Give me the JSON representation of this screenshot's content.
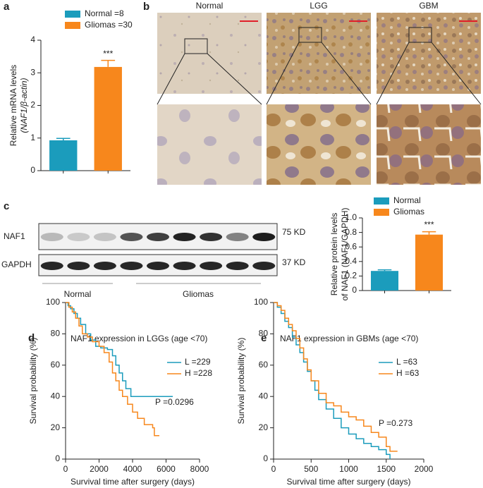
{
  "chart_data": [
    {
      "type": "bar",
      "panel": "a",
      "ylabel": [
        "Relative mRNA levels",
        "(NAF1/β-actin)"
      ],
      "ylim": [
        0,
        4
      ],
      "yticks": [
        0,
        1,
        2,
        3,
        4
      ],
      "series": [
        {
          "name": "Normal =8",
          "color": "#1b9cbc",
          "values": [
            0.93
          ],
          "errors": [
            0.06
          ]
        },
        {
          "name": "Gliomas =30",
          "color": "#f7871c",
          "values": [
            3.18
          ],
          "errors": [
            0.2
          ],
          "annotation": "***"
        }
      ]
    },
    {
      "type": "bar",
      "panel": "c",
      "ylabel": [
        "Relative protein levels",
        "of NAF1 (NAF1/GAPDH)"
      ],
      "ylim": [
        0,
        1
      ],
      "yticks": [
        0,
        0.2,
        0.4,
        0.6,
        0.8,
        {
          "value": 1,
          "label": "1.0"
        }
      ],
      "series": [
        {
          "name": "Normal",
          "color": "#1b9cbc",
          "values": [
            0.27
          ],
          "errors": [
            0.015
          ]
        },
        {
          "name": "Gliomas",
          "color": "#f7871c",
          "values": [
            0.77
          ],
          "errors": [
            0.04
          ],
          "annotation": "***"
        }
      ]
    },
    {
      "type": "step",
      "panel": "d",
      "title": "NAF1 expression in LGGs (age <70)",
      "xlabel": "Survival time after surgery (days)",
      "ylabel": "Survival probability (%)",
      "xlim": [
        0,
        8000
      ],
      "xticks": [
        0,
        2000,
        4000,
        6000,
        8000
      ],
      "ylim": [
        0,
        100
      ],
      "yticks": [
        0,
        20,
        40,
        60,
        80,
        100
      ],
      "annotation": "P =0.0296",
      "series": [
        {
          "name": "L =229",
          "color": "#1b9cbc",
          "x": [
            0,
            150,
            300,
            500,
            700,
            900,
            1200,
            1500,
            1800,
            2100,
            2500,
            2800,
            3000,
            3200,
            3400,
            3600,
            3900,
            6400
          ],
          "values": [
            100,
            98,
            96,
            93,
            90,
            86,
            80,
            76,
            72,
            71,
            70,
            66,
            60,
            55,
            50,
            45,
            40,
            40
          ]
        },
        {
          "name": "H =228",
          "color": "#f7871c",
          "x": [
            0,
            200,
            400,
            600,
            800,
            1000,
            1300,
            1600,
            2000,
            2300,
            2600,
            2800,
            3000,
            3200,
            3400,
            3700,
            4000,
            4300,
            4700,
            5200,
            5300,
            5600
          ],
          "values": [
            100,
            97,
            94,
            90,
            85,
            80,
            78,
            75,
            72,
            68,
            62,
            55,
            50,
            44,
            40,
            35,
            30,
            26,
            22,
            20,
            15,
            15
          ]
        }
      ]
    },
    {
      "type": "step",
      "panel": "e",
      "title": "NAF1 expression in GBMs (age <70)",
      "xlabel": "Survival time after surgery (days)",
      "ylabel": "Survival probability (%)",
      "xlim": [
        0,
        2000
      ],
      "xticks": [
        0,
        500,
        1000,
        1500,
        2000
      ],
      "ylim": [
        0,
        100
      ],
      "yticks": [
        0,
        20,
        40,
        60,
        80,
        100
      ],
      "annotation": "P =0.273",
      "series": [
        {
          "name": "L =63",
          "color": "#1b9cbc",
          "x": [
            0,
            50,
            100,
            150,
            200,
            250,
            300,
            350,
            400,
            450,
            500,
            550,
            600,
            700,
            800,
            900,
            1000,
            1100,
            1200,
            1300,
            1400,
            1500,
            1550
          ],
          "values": [
            100,
            97,
            93,
            88,
            84,
            78,
            73,
            68,
            62,
            56,
            50,
            44,
            38,
            32,
            26,
            20,
            16,
            13,
            10,
            8,
            6,
            3,
            0
          ]
        },
        {
          "name": "H =63",
          "color": "#f7871c",
          "x": [
            0,
            50,
            100,
            150,
            200,
            250,
            300,
            350,
            400,
            450,
            500,
            600,
            700,
            800,
            900,
            1000,
            1100,
            1200,
            1300,
            1400,
            1500,
            1550,
            1650
          ],
          "values": [
            100,
            98,
            95,
            90,
            86,
            82,
            77,
            71,
            64,
            57,
            50,
            42,
            36,
            34,
            30,
            27,
            25,
            21,
            17,
            14,
            8,
            5,
            5
          ]
        }
      ]
    }
  ],
  "panel_b": {
    "label": "b",
    "columns": [
      "Normal",
      "LGG",
      "GBM"
    ]
  },
  "blot": {
    "label": "c",
    "rows": [
      {
        "name": "NAF1",
        "size": "75 KD"
      },
      {
        "name": "GAPDH",
        "size": "37 KD"
      }
    ],
    "groups": [
      "Normal",
      "Gliomas"
    ]
  }
}
